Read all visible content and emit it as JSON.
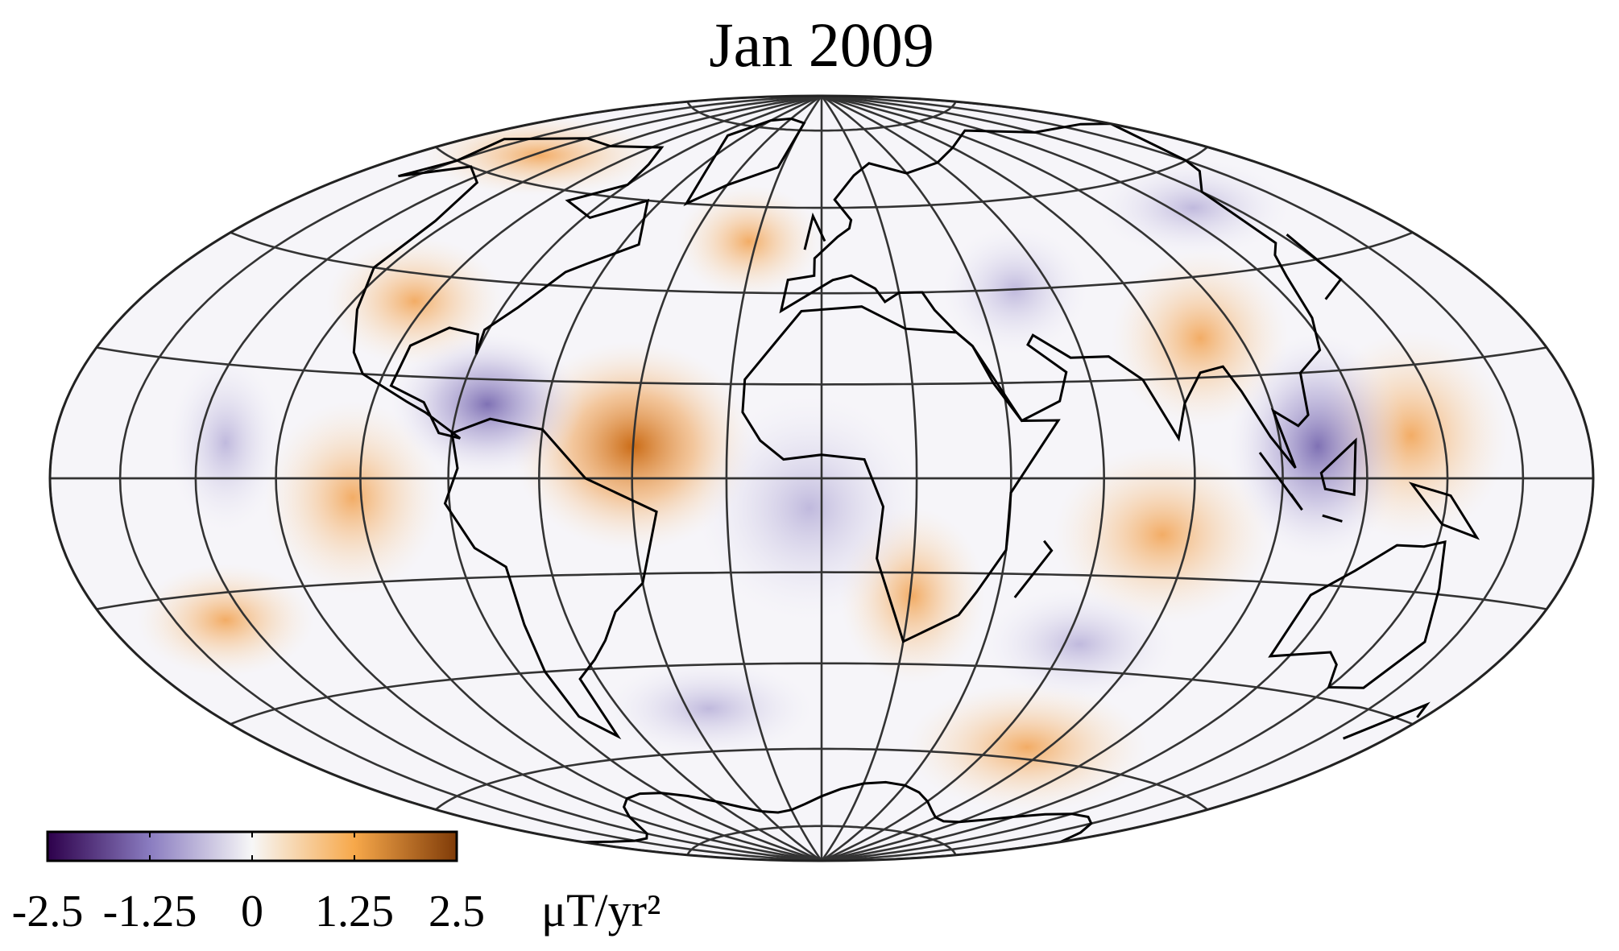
{
  "title": "Jan 2009",
  "colorbar": {
    "lim": [
      -2.5,
      2.5
    ],
    "ticks": [
      -2.5,
      -1.25,
      0,
      1.25,
      2.5
    ],
    "unit": "μT/yr²"
  }
}
